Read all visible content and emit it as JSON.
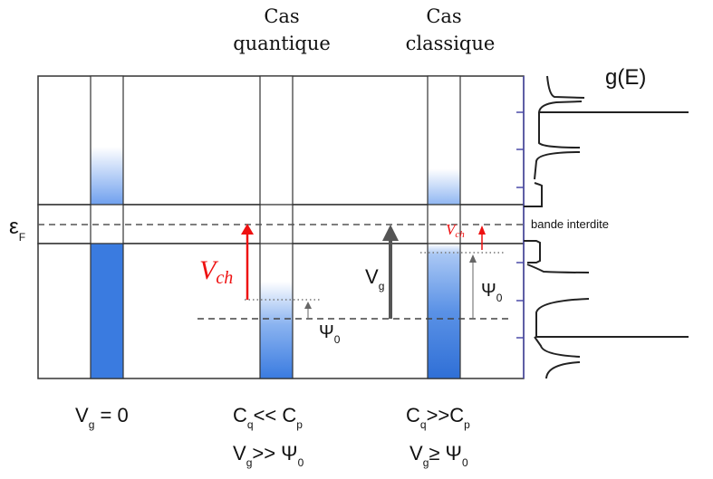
{
  "headers": {
    "quantum_line1": "Cas",
    "quantum_line2": "quantique",
    "classic_line1": "Cas",
    "classic_line2": "classique"
  },
  "dos_label": {
    "main": "g(E)"
  },
  "fermi_label": {
    "main": "ε",
    "sub": "F"
  },
  "gap_label": "bande interdite",
  "annotations": {
    "vch_left": "V",
    "vch_left_sub": "ch",
    "vch_right": "V",
    "vch_right_sub": "ch",
    "vg_main": "V",
    "vg_sub": "g",
    "psi_left_main": "Ψ",
    "psi_left_sub": "0",
    "psi_right_main": "Ψ",
    "psi_right_sub": "0"
  },
  "captions": {
    "col1": {
      "a": "V",
      "a_sub": "g",
      "b": " = 0"
    },
    "col2_line1": {
      "a": "C",
      "a_sub": "q",
      "b": "<< C",
      "b_sub": "p"
    },
    "col2_line2": {
      "a": "V",
      "a_sub": "g",
      "b": ">> Ψ",
      "b_sub": "0"
    },
    "col3_line1": {
      "a": "C",
      "a_sub": "q",
      "b": ">>C",
      "b_sub": "p"
    },
    "col3_line2": {
      "a": "V",
      "a_sub": "g",
      "b": "≥ Ψ",
      "b_sub": "0"
    }
  },
  "colors": {
    "band_blue": "#3a7be0",
    "arrow_red": "#ee1111",
    "arrow_gray": "#555555",
    "axis_blue": "#4a4aa8"
  }
}
